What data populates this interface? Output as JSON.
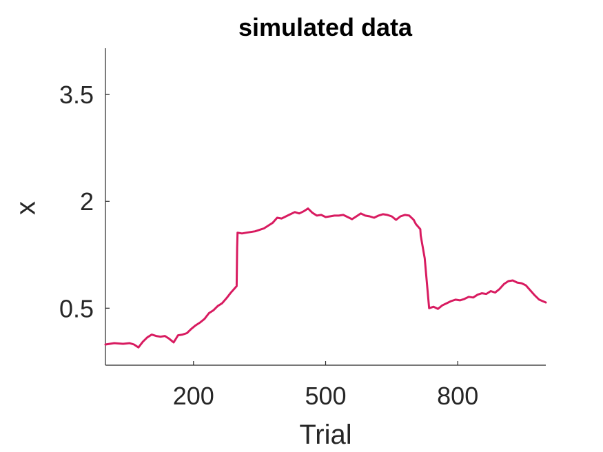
{
  "chart_data": {
    "type": "line",
    "title": "simulated data",
    "xlabel": "Trial",
    "ylabel": "x",
    "xlim": [
      0,
      1000
    ],
    "ylim": [
      -0.3,
      4.15
    ],
    "xticks": [
      200,
      500,
      800
    ],
    "xtick_labels": [
      "200",
      "500",
      "800"
    ],
    "yticks": [
      0.5,
      2,
      3.5
    ],
    "ytick_labels": [
      "0.5",
      "2",
      "3.5"
    ],
    "grid": false,
    "series": [
      {
        "color": "#D81B60",
        "x": [
          0,
          20,
          40,
          55,
          65,
          75,
          85,
          95,
          105,
          115,
          125,
          135,
          145,
          155,
          165,
          175,
          185,
          195,
          205,
          215,
          225,
          235,
          245,
          255,
          265,
          275,
          285,
          298,
          299,
          300,
          310,
          320,
          330,
          340,
          350,
          360,
          370,
          380,
          390,
          400,
          410,
          420,
          430,
          440,
          450,
          460,
          470,
          480,
          490,
          500,
          510,
          520,
          530,
          540,
          550,
          560,
          570,
          580,
          590,
          600,
          610,
          620,
          630,
          640,
          650,
          660,
          670,
          680,
          690,
          700,
          705,
          715,
          716,
          725,
          735,
          745,
          755,
          765,
          775,
          785,
          795,
          805,
          815,
          825,
          835,
          845,
          855,
          865,
          875,
          885,
          895,
          905,
          915,
          925,
          935,
          945,
          955,
          965,
          975,
          985,
          1000
        ],
        "y": [
          -0.01,
          0.01,
          0.0,
          0.01,
          -0.01,
          -0.05,
          0.03,
          0.09,
          0.13,
          0.11,
          0.1,
          0.11,
          0.07,
          0.02,
          0.12,
          0.13,
          0.15,
          0.21,
          0.26,
          0.3,
          0.35,
          0.43,
          0.47,
          0.53,
          0.57,
          0.64,
          0.72,
          0.81,
          1.35,
          1.56,
          1.55,
          1.56,
          1.57,
          1.58,
          1.6,
          1.62,
          1.66,
          1.7,
          1.77,
          1.76,
          1.79,
          1.82,
          1.85,
          1.83,
          1.86,
          1.9,
          1.84,
          1.8,
          1.81,
          1.78,
          1.79,
          1.8,
          1.8,
          1.81,
          1.78,
          1.75,
          1.79,
          1.83,
          1.8,
          1.79,
          1.77,
          1.8,
          1.82,
          1.81,
          1.79,
          1.74,
          1.79,
          1.81,
          1.8,
          1.74,
          1.68,
          1.61,
          1.52,
          1.2,
          0.5,
          0.52,
          0.49,
          0.54,
          0.57,
          0.6,
          0.62,
          0.61,
          0.63,
          0.66,
          0.65,
          0.69,
          0.71,
          0.7,
          0.74,
          0.72,
          0.77,
          0.84,
          0.88,
          0.89,
          0.86,
          0.85,
          0.82,
          0.75,
          0.68,
          0.62,
          0.58
        ]
      }
    ]
  }
}
